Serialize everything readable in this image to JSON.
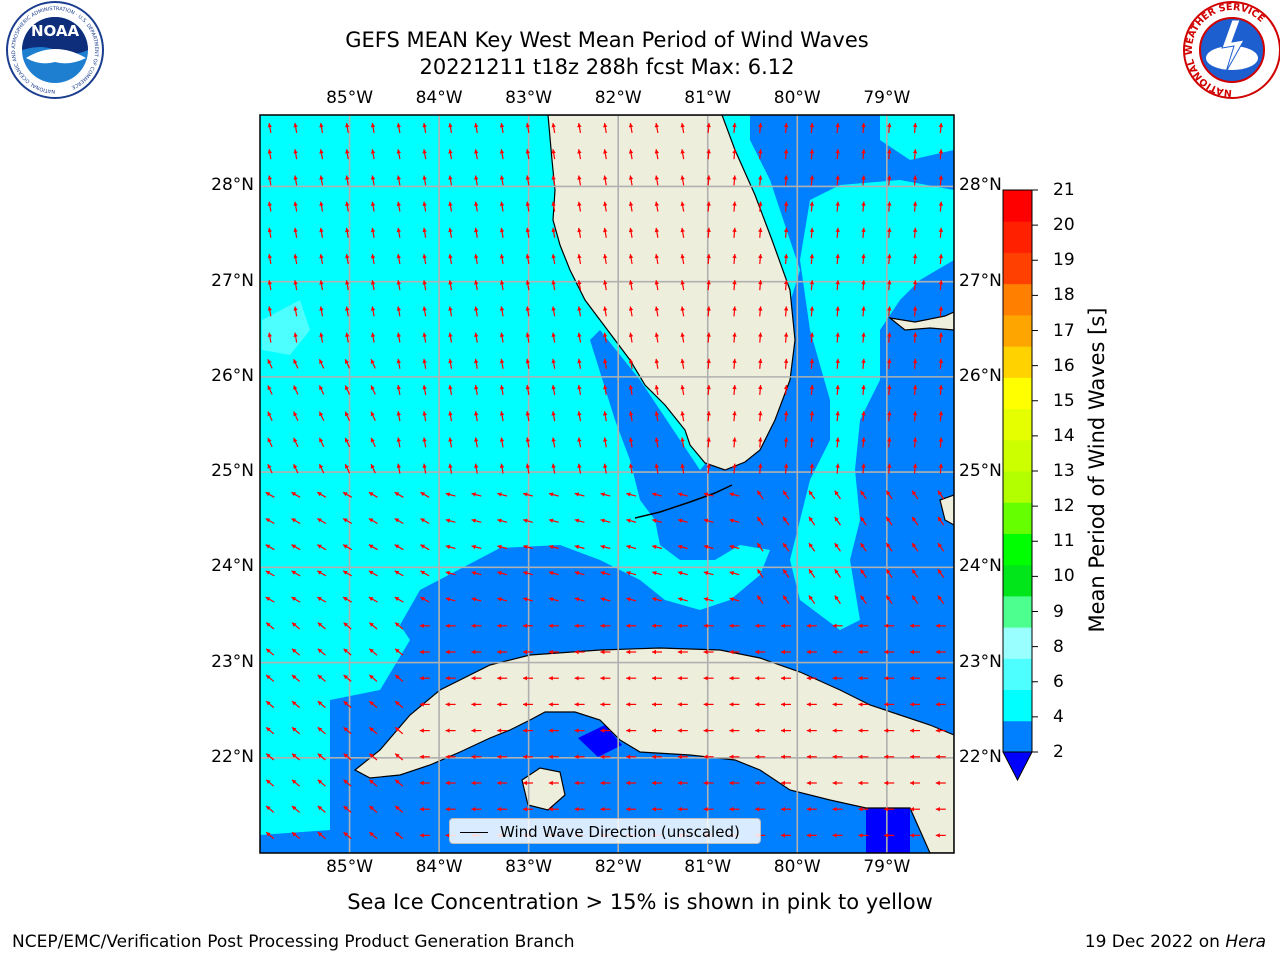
{
  "title": {
    "line1": "GEFS MEAN Key West Mean Period of Wind Waves",
    "line2": "20221211 t18z 288h fcst   Max: 6.12"
  },
  "map": {
    "lon_ticks": [
      "85°W",
      "84°W",
      "83°W",
      "82°W",
      "81°W",
      "80°W",
      "79°W"
    ],
    "lat_ticks": [
      "28°N",
      "27°N",
      "26°N",
      "25°N",
      "24°N",
      "23°N",
      "22°N"
    ],
    "extent": {
      "lon_min": -86.0,
      "lon_max": -78.25,
      "lat_min": 21.0,
      "lat_max": 28.75
    },
    "gridlines": true,
    "colors": {
      "land": "#eeeedd",
      "sea_4_6": "#00ffff",
      "sea_2_4": "#007fff",
      "sea_6_8": "#4dffff",
      "sea_lt_2": "#0000ff",
      "arrow": "#ff0000",
      "grid": "#b0b0b0"
    }
  },
  "legend": {
    "label": "Wind Wave Direction (unscaled)",
    "position": "bottom-center"
  },
  "colorbar": {
    "label": "Mean Period of Wind Waves [s]",
    "ticks": [
      "2",
      "4",
      "6",
      "8",
      "9",
      "10",
      "11",
      "12",
      "13",
      "14",
      "15",
      "16",
      "17",
      "18",
      "19",
      "20",
      "21"
    ],
    "colors": [
      "#007fff",
      "#00ffff",
      "#4dffff",
      "#9affff",
      "#4dff8f",
      "#00e61a",
      "#00ff00",
      "#66ff00",
      "#b3ff00",
      "#ccff00",
      "#e6ff00",
      "#ffff00",
      "#ffd200",
      "#ffa500",
      "#ff8000",
      "#ff4000",
      "#ff2000",
      "#ff0000"
    ],
    "under_color": "#0000ff"
  },
  "subtitle": "Sea Ice Concentration > 15% is shown in pink to yellow",
  "footer": {
    "left": "NCEP/EMC/Verification Post Processing Product Generation Branch",
    "right_prefix": "19 Dec 2022 on ",
    "right_machine": "Hera"
  },
  "logos": {
    "noaa_text": "NOAA",
    "noaa_ring": "NATIONAL OCEANIC AND ATMOSPHERIC ADMINISTRATION · U.S. DEPARTMENT OF COMMERCE",
    "nws_ring": "NATIONAL WEATHER SERVICE"
  }
}
